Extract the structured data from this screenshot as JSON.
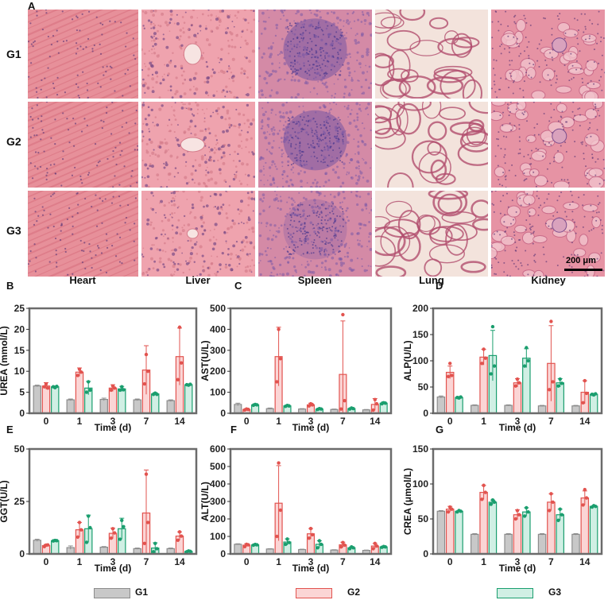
{
  "histology": {
    "panel_letter": "A",
    "rows": [
      "G1",
      "G2",
      "G3"
    ],
    "tissues": [
      "Heart",
      "Liver",
      "Spleen",
      "Lung",
      "Kidney"
    ],
    "scale_bar": "200 μm"
  },
  "legend": [
    {
      "name": "G1",
      "fill": "#c8c8c8",
      "stroke": "#8c8c8c"
    },
    {
      "name": "G2",
      "fill": "#fbd5d5",
      "stroke": "#e2534f"
    },
    {
      "name": "G3",
      "fill": "#d0efe4",
      "stroke": "#1a9e6e"
    }
  ],
  "colors": {
    "G1": "#8c8c8c",
    "G2": "#e2534f",
    "G3": "#1a9e6e"
  },
  "chart_data": [
    {
      "panel": "B",
      "type": "bar",
      "ylabel": "UREA (mmol/L)",
      "xlabel": "Time (d)",
      "categories": [
        "0",
        "1",
        "3",
        "7",
        "14"
      ],
      "ylim": [
        0,
        25
      ],
      "yticks": [
        0,
        5,
        10,
        15,
        20,
        25
      ],
      "series": [
        {
          "name": "G1",
          "values": [
            6.5,
            3.2,
            3.3,
            3.2,
            3.0
          ],
          "errors": [
            0.2,
            0.2,
            0.3,
            0.2,
            0.2
          ]
        },
        {
          "name": "G2",
          "values": [
            6.5,
            9.8,
            6.0,
            10.3,
            13.5
          ],
          "errors": [
            0.8,
            1.0,
            0.8,
            5.8,
            6.8
          ],
          "points": [
            [
              6.3,
              7.0,
              6.0
            ],
            [
              9.0,
              10.5,
              9.8
            ],
            [
              5.5,
              6.5,
              6.0
            ],
            [
              7.0,
              14.0,
              10.0
            ],
            [
              8.0,
              20.5,
              12.0
            ]
          ]
        },
        {
          "name": "G3",
          "values": [
            6.3,
            6.0,
            5.8,
            4.6,
            6.8
          ],
          "errors": [
            0.2,
            1.6,
            0.6,
            0.3,
            0.2
          ],
          "points": [
            [
              6.3,
              6.1,
              6.4
            ],
            [
              5.0,
              7.5,
              5.5
            ],
            [
              5.5,
              6.3,
              5.6
            ],
            [
              4.5,
              4.8,
              4.5
            ],
            [
              6.8,
              6.7,
              6.9
            ]
          ]
        }
      ]
    },
    {
      "panel": "C",
      "type": "bar",
      "ylabel": "AST(U/L)",
      "xlabel": "Time (d)",
      "categories": [
        "0",
        "1",
        "3",
        "7",
        "14"
      ],
      "ylim": [
        0,
        500
      ],
      "yticks": [
        0,
        100,
        200,
        300,
        400,
        500
      ],
      "series": [
        {
          "name": "G1",
          "values": [
            42,
            22,
            20,
            18,
            16
          ],
          "errors": [
            6,
            3,
            2,
            2,
            2
          ]
        },
        {
          "name": "G2",
          "values": [
            18,
            270,
            40,
            185,
            42
          ],
          "errors": [
            3,
            140,
            8,
            255,
            28
          ],
          "points": [
            [
              16,
              20,
              18
            ],
            [
              150,
              400,
              260
            ],
            [
              35,
              45,
              40
            ],
            [
              20,
              470,
              60
            ],
            [
              15,
              65,
              45
            ]
          ]
        },
        {
          "name": "G3",
          "values": [
            40,
            35,
            20,
            22,
            48
          ],
          "errors": [
            5,
            4,
            3,
            4,
            6
          ],
          "points": [
            [
              38,
              42,
              40
            ],
            [
              33,
              37,
              35
            ],
            [
              18,
              22,
              20
            ],
            [
              20,
              25,
              22
            ],
            [
              45,
              50,
              48
            ]
          ]
        }
      ]
    },
    {
      "panel": "D",
      "type": "bar",
      "ylabel": "ALP(U/L)",
      "xlabel": "Time (d)",
      "categories": [
        "0",
        "1",
        "3",
        "7",
        "14"
      ],
      "ylim": [
        0,
        200
      ],
      "yticks": [
        0,
        50,
        100,
        150,
        200
      ],
      "series": [
        {
          "name": "G1",
          "values": [
            31,
            15,
            15,
            14,
            14
          ],
          "errors": [
            2,
            1,
            1,
            1,
            1
          ]
        },
        {
          "name": "G2",
          "values": [
            78,
            107,
            58,
            95,
            40
          ],
          "errors": [
            12,
            15,
            8,
            72,
            22
          ],
          "points": [
            [
              70,
              95,
              72
            ],
            [
              95,
              122,
              105
            ],
            [
              52,
              65,
              58
            ],
            [
              45,
              175,
              60
            ],
            [
              20,
              62,
              38
            ]
          ]
        },
        {
          "name": "G3",
          "values": [
            30,
            110,
            105,
            58,
            36
          ],
          "errors": [
            2,
            48,
            18,
            8,
            2
          ],
          "points": [
            [
              30,
              29,
              31
            ],
            [
              75,
              165,
              90
            ],
            [
              90,
              125,
              100
            ],
            [
              52,
              65,
              57
            ],
            [
              36,
              35,
              37
            ]
          ]
        }
      ]
    },
    {
      "panel": "E",
      "type": "bar",
      "ylabel": "GGT(U/L)",
      "xlabel": "Time (d)",
      "categories": [
        "0",
        "1",
        "3",
        "7",
        "14"
      ],
      "ylim": [
        0,
        50
      ],
      "yticks": [
        0,
        25,
        50
      ],
      "series": [
        {
          "name": "G1",
          "values": [
            6.5,
            3.0,
            3.2,
            2.5,
            2.5
          ],
          "errors": [
            0.5,
            0.8,
            0.3,
            0.3,
            0.3
          ]
        },
        {
          "name": "G2",
          "values": [
            4.0,
            11.5,
            9.8,
            19.5,
            8.5
          ],
          "errors": [
            0.5,
            3.5,
            2.5,
            20.5,
            2.0
          ],
          "points": [
            [
              3.5,
              4.2,
              4.3
            ],
            [
              8.0,
              15.0,
              11.5
            ],
            [
              7.5,
              12.0,
              10.0
            ],
            [
              5.0,
              38.0,
              15.0
            ],
            [
              6.5,
              10.5,
              8.5
            ]
          ]
        },
        {
          "name": "G3",
          "values": [
            6.3,
            12.0,
            12.0,
            2.8,
            1.2
          ],
          "errors": [
            0.3,
            6.5,
            5.0,
            2.5,
            0.3
          ],
          "points": [
            [
              6.2,
              6.4,
              6.3
            ],
            [
              5.5,
              18.0,
              12.5
            ],
            [
              7.0,
              16.0,
              13.0
            ],
            [
              1.0,
              5.0,
              2.5
            ],
            [
              1.0,
              1.4,
              1.2
            ]
          ]
        }
      ]
    },
    {
      "panel": "F",
      "type": "bar",
      "ylabel": "ALT(U/L)",
      "xlabel": "Time (d)",
      "categories": [
        "0",
        "1",
        "3",
        "7",
        "14"
      ],
      "ylim": [
        0,
        600
      ],
      "yticks": [
        0,
        100,
        200,
        300,
        400,
        500,
        600
      ],
      "series": [
        {
          "name": "G1",
          "values": [
            55,
            28,
            25,
            22,
            20
          ],
          "errors": [
            3,
            2,
            2,
            2,
            2
          ]
        },
        {
          "name": "G2",
          "values": [
            50,
            290,
            115,
            52,
            45
          ],
          "errors": [
            8,
            215,
            30,
            15,
            15
          ],
          "points": [
            [
              42,
              55,
              52
            ],
            [
              100,
              520,
              250
            ],
            [
              90,
              145,
              110
            ],
            [
              40,
              65,
              50
            ],
            [
              30,
              60,
              45
            ]
          ]
        },
        {
          "name": "G3",
          "values": [
            52,
            68,
            55,
            35,
            40
          ],
          "errors": [
            4,
            18,
            20,
            5,
            4
          ],
          "points": [
            [
              50,
              54,
              52
            ],
            [
              55,
              85,
              65
            ],
            [
              35,
              75,
              55
            ],
            [
              30,
              40,
              35
            ],
            [
              38,
              42,
              40
            ]
          ]
        }
      ]
    },
    {
      "panel": "G",
      "type": "bar",
      "ylabel": "CREA (μmol/L)",
      "xlabel": "Time (d)",
      "categories": [
        "0",
        "1",
        "3",
        "7",
        "14"
      ],
      "ylim": [
        0,
        150
      ],
      "yticks": [
        0,
        50,
        100,
        150
      ],
      "series": [
        {
          "name": "G1",
          "values": [
            61,
            28,
            28,
            28,
            28
          ],
          "errors": [
            1,
            1,
            1,
            1,
            1
          ]
        },
        {
          "name": "G2",
          "values": [
            64,
            88,
            56,
            74,
            80
          ],
          "errors": [
            4,
            10,
            7,
            12,
            10
          ],
          "points": [
            [
              60,
              67,
              64
            ],
            [
              78,
              98,
              88
            ],
            [
              50,
              62,
              56
            ],
            [
              62,
              86,
              74
            ],
            [
              70,
              92,
              80
            ]
          ]
        },
        {
          "name": "G3",
          "values": [
            61,
            74,
            60,
            56,
            68
          ],
          "errors": [
            1,
            3,
            6,
            8,
            1
          ],
          "points": [
            [
              60,
              62,
              61
            ],
            [
              71,
              77,
              74
            ],
            [
              54,
              66,
              60
            ],
            [
              48,
              64,
              56
            ],
            [
              67,
              69,
              68
            ]
          ]
        }
      ]
    }
  ]
}
